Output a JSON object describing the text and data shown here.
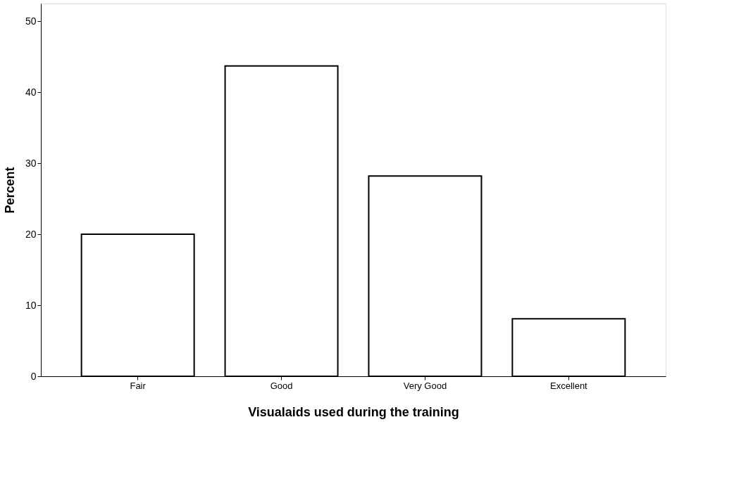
{
  "chart_data": {
    "type": "bar",
    "xlabel": "Visualaids used during the training",
    "ylabel": "Percent",
    "categories": [
      "Fair",
      "Good",
      "Very Good",
      "Excellent"
    ],
    "values": [
      20.0,
      43.7,
      28.2,
      8.1
    ],
    "color": "#ffffff",
    "ylim": [
      0,
      52.5
    ],
    "yticks": [
      0,
      10,
      20,
      30,
      40,
      50
    ],
    "grid": false
  }
}
